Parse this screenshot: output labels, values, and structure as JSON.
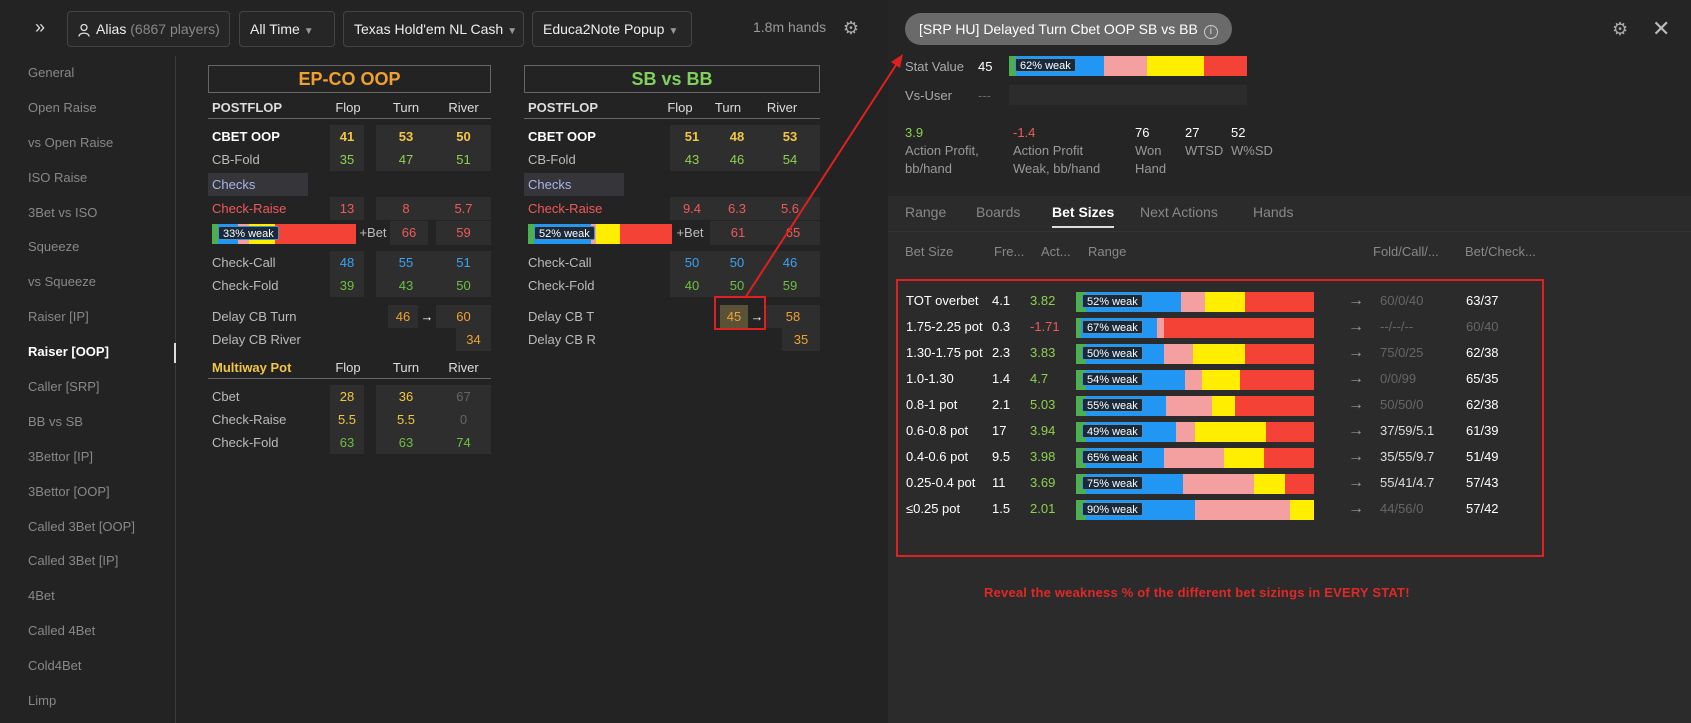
{
  "topbar": {
    "alias_label": "Alias",
    "alias_count": "(6867 players)",
    "time_filter": "All Time",
    "game_filter": "Texas Hold'em NL Cash",
    "popup_filter": "Educa2Note Popup",
    "hands": "1.8m hands"
  },
  "sidebar": {
    "items": [
      {
        "label": "General"
      },
      {
        "label": "Open Raise"
      },
      {
        "label": "vs Open Raise"
      },
      {
        "label": "ISO Raise"
      },
      {
        "label": "3Bet vs ISO"
      },
      {
        "label": "Squeeze"
      },
      {
        "label": "vs Squeeze"
      },
      {
        "label": "Raiser [IP]"
      },
      {
        "label": "Raiser [OOP]"
      },
      {
        "label": "Caller [SRP]"
      },
      {
        "label": "BB vs SB"
      },
      {
        "label": "3Bettor [IP]"
      },
      {
        "label": "3Bettor [OOP]"
      },
      {
        "label": "Called 3Bet [OOP]"
      },
      {
        "label": "Called 3Bet [IP]"
      },
      {
        "label": "4Bet"
      },
      {
        "label": "Called 4Bet"
      },
      {
        "label": "Cold4Bet"
      },
      {
        "label": "Limp"
      }
    ],
    "active_index": 8
  },
  "table1": {
    "title": "EP-CO OOP",
    "head": {
      "label": "POSTFLOP",
      "flop": "Flop",
      "turn": "Turn",
      "river": "River"
    },
    "cbet": {
      "label": "CBET OOP",
      "flop": "41",
      "turn": "53",
      "river": "50"
    },
    "cbfold": {
      "label": "CB-Fold",
      "flop": "35",
      "turn": "47",
      "river": "51"
    },
    "checks": "Checks",
    "checkraise": {
      "label": "Check-Raise",
      "flop": "13",
      "turn": "8",
      "river": "5.7"
    },
    "weak_bar": {
      "pill": "33% weak",
      "betlabel": "+Bet",
      "turn": "66",
      "river": "59"
    },
    "checkcall": {
      "label": "Check-Call",
      "flop": "48",
      "turn": "55",
      "river": "51"
    },
    "checkfold": {
      "label": "Check-Fold",
      "flop": "39",
      "turn": "43",
      "river": "50"
    },
    "delaycb_turn": {
      "label": "Delay CB Turn",
      "turn": "46",
      "arrow": "→",
      "river": "60"
    },
    "delaycb_river": {
      "label": "Delay CB River",
      "river": "34"
    },
    "multiway_head": {
      "label": "Multiway Pot",
      "flop": "Flop",
      "turn": "Turn",
      "river": "River"
    },
    "mw_cbet": {
      "label": "Cbet",
      "flop": "28",
      "turn": "36",
      "river": "67"
    },
    "mw_checkraise": {
      "label": "Check-Raise",
      "flop": "5.5",
      "turn": "5.5",
      "river": "0"
    },
    "mw_checkfold": {
      "label": "Check-Fold",
      "flop": "63",
      "turn": "63",
      "river": "74"
    }
  },
  "table2": {
    "title": "SB vs BB",
    "head": {
      "label": "POSTFLOP",
      "flop": "Flop",
      "turn": "Turn",
      "river": "River"
    },
    "cbet": {
      "label": "CBET OOP",
      "flop": "51",
      "turn": "48",
      "river": "53"
    },
    "cbfold": {
      "label": "CB-Fold",
      "flop": "43",
      "turn": "46",
      "river": "54"
    },
    "checks": "Checks",
    "checkraise": {
      "label": "Check-Raise",
      "flop": "9.4",
      "turn": "6.3",
      "river": "5.6"
    },
    "weak_bar": {
      "pill": "52% weak",
      "betlabel": "+Bet",
      "turn": "61",
      "river": "65"
    },
    "checkcall": {
      "label": "Check-Call",
      "flop": "50",
      "turn": "50",
      "river": "46"
    },
    "checkfold": {
      "label": "Check-Fold",
      "flop": "40",
      "turn": "50",
      "river": "59"
    },
    "delaycb_turn": {
      "label": "Delay CB T",
      "turn": "45",
      "arrow": "→",
      "river": "58"
    },
    "delaycb_river": {
      "label": "Delay CB R",
      "river": "35"
    }
  },
  "popup": {
    "title": "[SRP HU] Delayed Turn Cbet OOP SB vs BB",
    "info_glyph": "i",
    "stat_value_label": "Stat Value",
    "stat_value": "45",
    "stat_weak_pill": "62% weak",
    "vs_user_label": "Vs-User",
    "vs_user_value": "---",
    "metrics": [
      {
        "value": "3.9",
        "label1": "Action Profit,",
        "label2": "bb/hand"
      },
      {
        "value": "-1.4",
        "label1": "Action Profit",
        "label2": "Weak, bb/hand"
      },
      {
        "value": "76",
        "label1": "Won",
        "label2": "Hand"
      },
      {
        "value": "27",
        "label1": "WTSD",
        "label2": ""
      },
      {
        "value": "52",
        "label1": "W%SD",
        "label2": ""
      }
    ],
    "tabs": [
      "Range",
      "Boards",
      "Bet Sizes",
      "Next Actions",
      "Hands"
    ],
    "active_tab": "Bet Sizes",
    "bs_headers": {
      "size": "Bet Size",
      "freq": "Fre...",
      "act": "Act...",
      "range": "Range",
      "fcr": "Fold/Call/...",
      "bc": "Bet/Check..."
    },
    "bet_sizes": [
      {
        "name": "TOT overbet",
        "freq": "4.1",
        "act": "3.82",
        "pill": "52% weak",
        "fcr": "60/0/40",
        "fcr_dim": true,
        "bc": "63/37",
        "bc_dim": false
      },
      {
        "name": "1.75-2.25 pot",
        "freq": "0.3",
        "act": "-1.71",
        "pill": "67% weak",
        "fcr": "--/--/--",
        "fcr_dim": true,
        "bc": "60/40",
        "bc_dim": true
      },
      {
        "name": "1.30-1.75 pot",
        "freq": "2.3",
        "act": "3.83",
        "pill": "50% weak",
        "fcr": "75/0/25",
        "fcr_dim": true,
        "bc": "62/38",
        "bc_dim": false
      },
      {
        "name": "1.0-1.30",
        "freq": "1.4",
        "act": "4.7",
        "pill": "54% weak",
        "fcr": "0/0/99",
        "fcr_dim": true,
        "bc": "65/35",
        "bc_dim": false
      },
      {
        "name": "0.8-1 pot",
        "freq": "2.1",
        "act": "5.03",
        "pill": "55% weak",
        "fcr": "50/50/0",
        "fcr_dim": true,
        "bc": "62/38",
        "bc_dim": false
      },
      {
        "name": "0.6-0.8 pot",
        "freq": "17",
        "act": "3.94",
        "pill": "49% weak",
        "fcr": "37/59/5.1",
        "fcr_dim": false,
        "bc": "61/39",
        "bc_dim": false
      },
      {
        "name": "0.4-0.6 pot",
        "freq": "9.5",
        "act": "3.98",
        "pill": "65% weak",
        "fcr": "35/55/9.7",
        "fcr_dim": false,
        "bc": "51/49",
        "bc_dim": false
      },
      {
        "name": "0.25-0.4 pot",
        "freq": "11",
        "act": "3.69",
        "pill": "75% weak",
        "fcr": "55/41/4.7",
        "fcr_dim": false,
        "bc": "57/43",
        "bc_dim": false
      },
      {
        "name": "≤0.25 pot",
        "freq": "1.5",
        "act": "2.01",
        "pill": "90% weak",
        "fcr": "44/56/0",
        "fcr_dim": true,
        "bc": "57/42",
        "bc_dim": false
      }
    ],
    "arrow_glyph": "→",
    "reveal_text": "Reveal the weakness % of the different bet sizings in EVERY STAT!"
  },
  "colors": {
    "orange_title": "#f0a030",
    "green_title": "#7fd15a",
    "bar_green": "#4caf50",
    "bar_blue": "#2196f3",
    "bar_pink": "#f4a0a0",
    "bar_yellow": "#ffee00",
    "bar_red": "#f44336",
    "annotation_red": "#e02020"
  }
}
